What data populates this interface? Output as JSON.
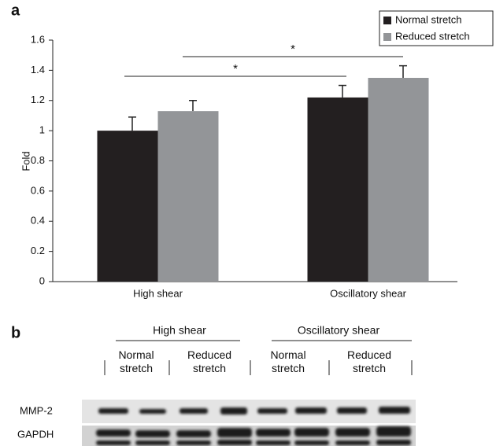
{
  "chart_data": {
    "type": "bar",
    "panel_label": "a",
    "y_label": "Fold",
    "categories": [
      "High shear",
      "Oscillatory shear"
    ],
    "series": [
      {
        "name": "Normal stretch",
        "color": "#231f20",
        "values": [
          1.0,
          1.22
        ],
        "errors": [
          0.09,
          0.08
        ]
      },
      {
        "name": "Reduced stretch",
        "color": "#939598",
        "values": [
          1.13,
          1.35
        ],
        "errors": [
          0.07,
          0.08
        ]
      }
    ],
    "ylim": [
      0,
      1.6
    ],
    "yticks": [
      0,
      0.2,
      0.4,
      0.6,
      0.8,
      1,
      1.2,
      1.4,
      1.6
    ],
    "legend": "top-right",
    "annotations": [
      "*",
      "*"
    ]
  },
  "blot": {
    "panel_label": "b",
    "groups": [
      "High shear",
      "Oscillatory shear"
    ],
    "lanes": [
      "Normal stretch",
      "Reduced stretch",
      "Normal stretch",
      "Reduced stretch"
    ],
    "rows": [
      "MMP-2",
      "GAPDH"
    ]
  }
}
